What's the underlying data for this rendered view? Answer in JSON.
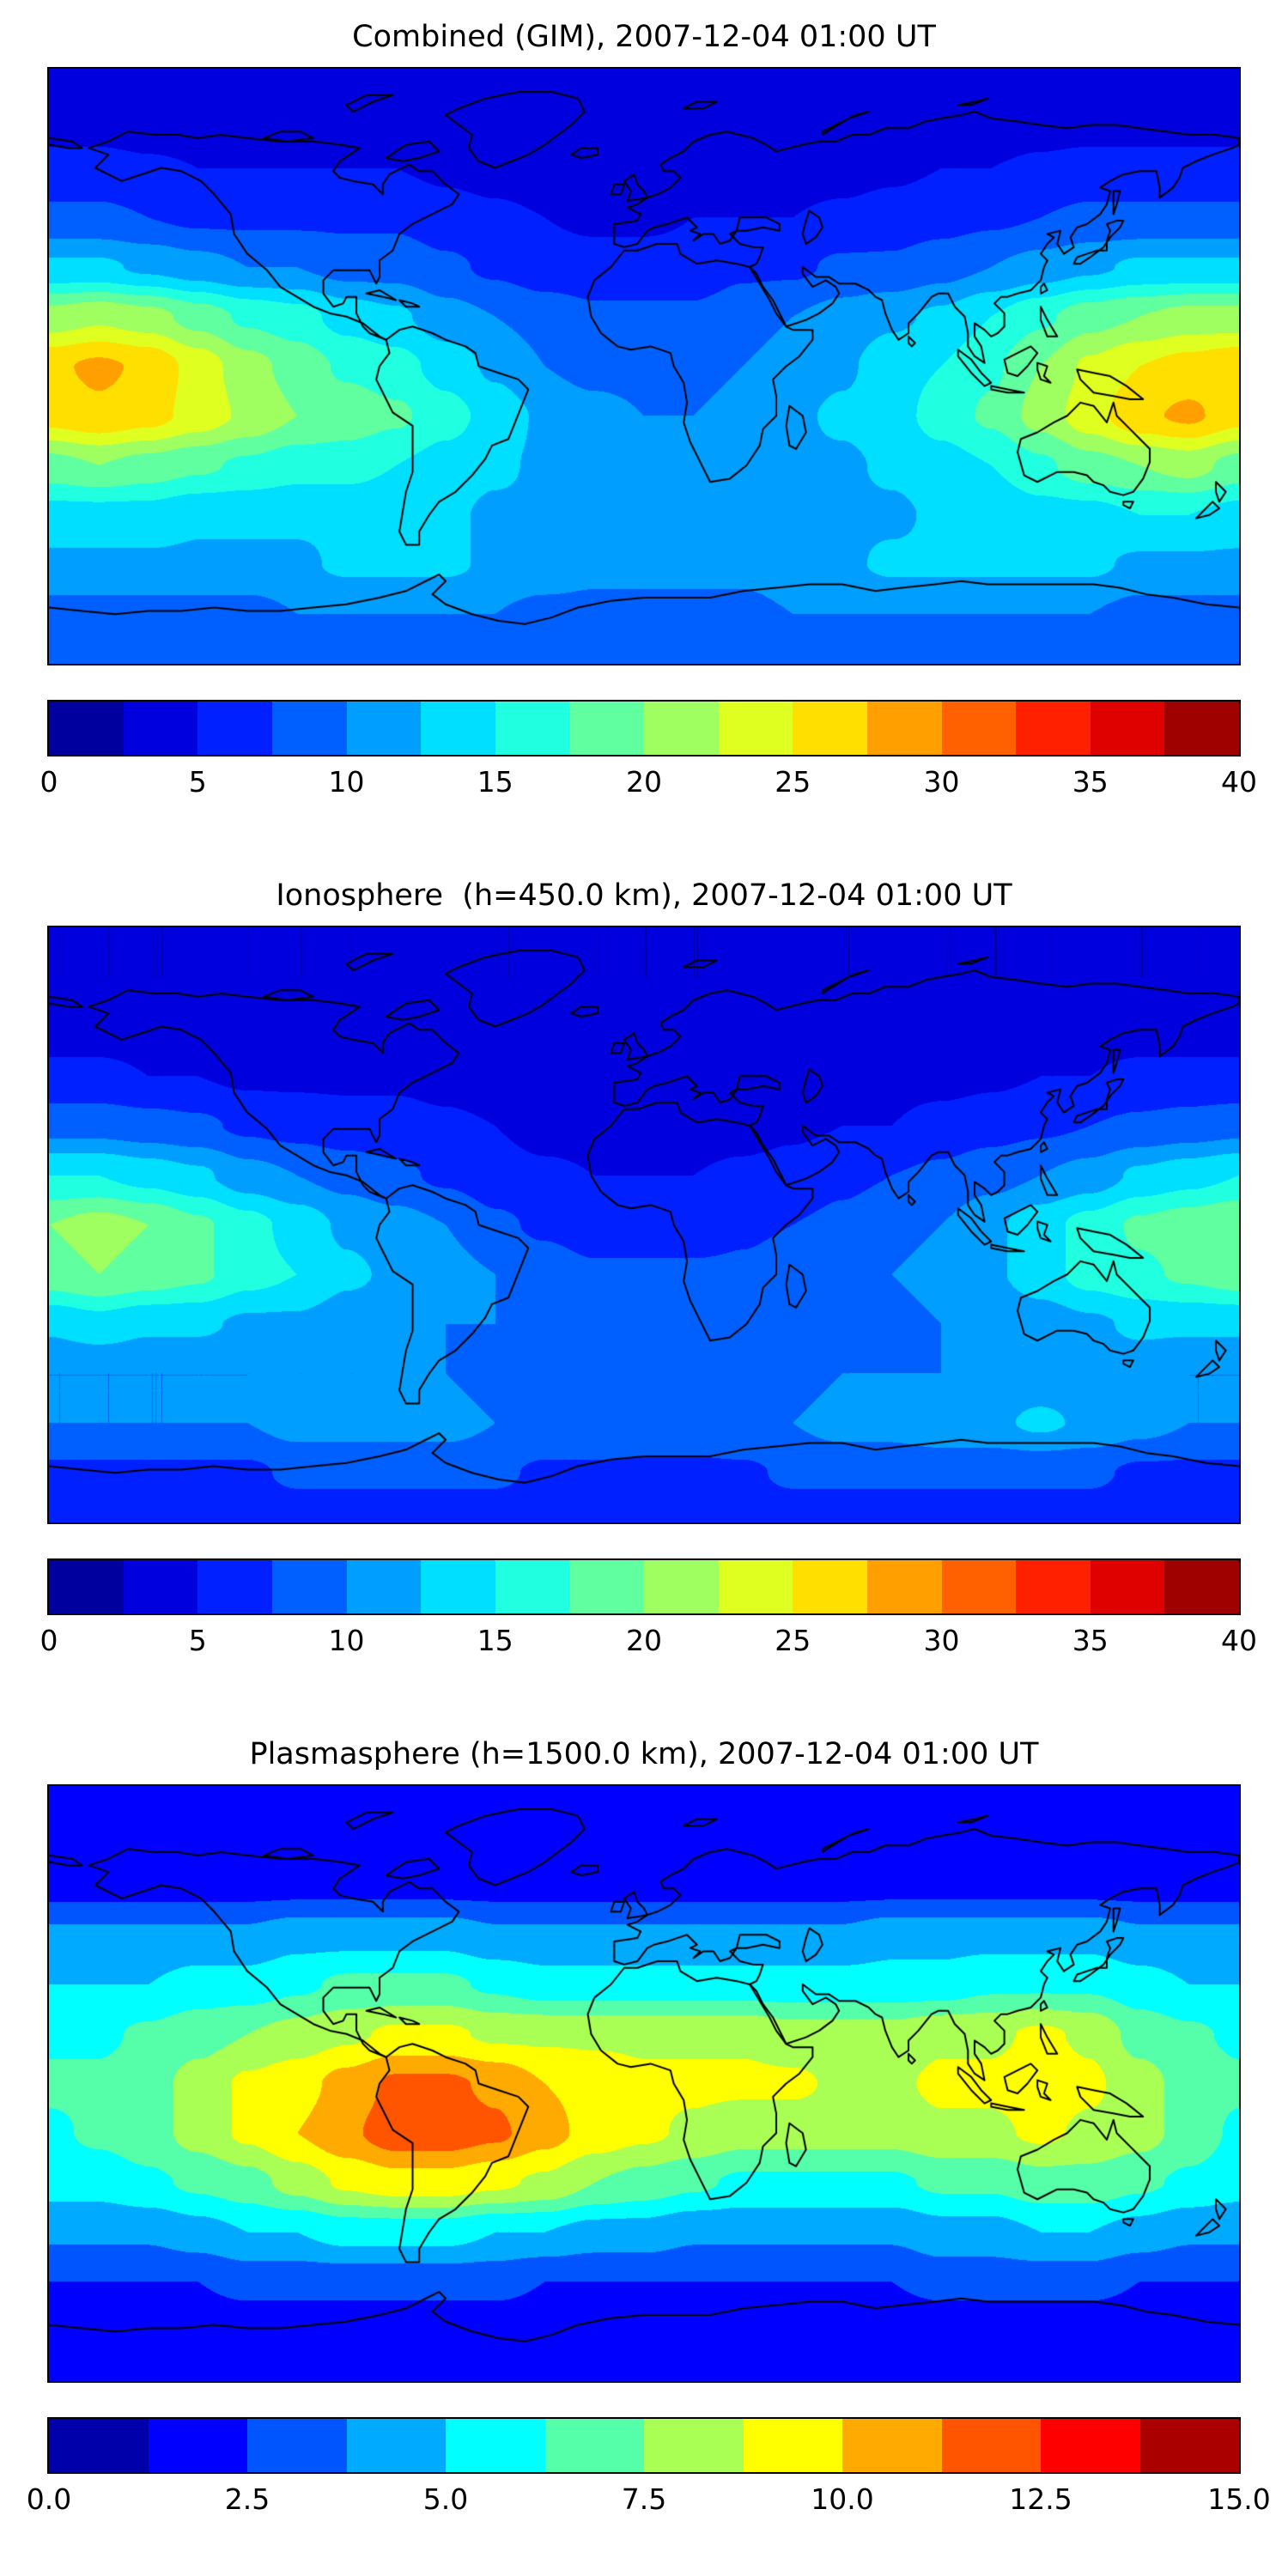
{
  "figure": {
    "background": "#ffffff",
    "coastline_color": "#000000"
  },
  "chart_data": [
    {
      "type": "heatmap",
      "title": "Combined (GIM), 2007-12-04 01:00 UT",
      "projection": "equirectangular",
      "lon_range": [
        -180,
        180
      ],
      "lat_range": [
        -90,
        90
      ],
      "grid_lon_step": 15,
      "grid_lat_step": 15,
      "vmin": 0,
      "vmax": 40,
      "n_levels": 16,
      "colormap": "jet",
      "colorbar_ticks": [
        "0",
        "5",
        "10",
        "15",
        "20",
        "25",
        "30",
        "35",
        "40"
      ],
      "values": [
        [
          3,
          3,
          3,
          3,
          3,
          3,
          3,
          3,
          3,
          3,
          3,
          3,
          3,
          3,
          3,
          3,
          3,
          3,
          3,
          3,
          3,
          3,
          3,
          3,
          3
        ],
        [
          3.5,
          3.5,
          3,
          3,
          3,
          3,
          3,
          3,
          3,
          3,
          2.5,
          2.5,
          2.5,
          2.5,
          3,
          3,
          3,
          3,
          3,
          3,
          3.5,
          3.5,
          3.5,
          3.5,
          3.5
        ],
        [
          6,
          6,
          5.5,
          5,
          5,
          5,
          5,
          5,
          4.5,
          4,
          3.5,
          3.5,
          3.5,
          3.5,
          4,
          4,
          4,
          4.5,
          5,
          5,
          5.5,
          6,
          6,
          6,
          6
        ],
        [
          8,
          8,
          7.5,
          7,
          7,
          7,
          7,
          7,
          6,
          5.5,
          5,
          4.5,
          4.5,
          5,
          5,
          5,
          5.5,
          6,
          6.5,
          7,
          7.5,
          8,
          8,
          8,
          8
        ],
        [
          13,
          13,
          12,
          11,
          10,
          10,
          9,
          9,
          8,
          7,
          6,
          6,
          6,
          6,
          7,
          7,
          8,
          8,
          9,
          10,
          11,
          12,
          13,
          13,
          13
        ],
        [
          21,
          22,
          21,
          19,
          17,
          16,
          14,
          13,
          11,
          10,
          9,
          8,
          8,
          8,
          9,
          10,
          11,
          12,
          13,
          15,
          17,
          19,
          20,
          21,
          21
        ],
        [
          27,
          28,
          27,
          24,
          21,
          19,
          17,
          16,
          14,
          12,
          10,
          9,
          9,
          9,
          10,
          11,
          12,
          14,
          15,
          17,
          20,
          23,
          25,
          26,
          27
        ],
        [
          26,
          27,
          26,
          24,
          22,
          20,
          19,
          18,
          16,
          14,
          12,
          11,
          10,
          10,
          11,
          12,
          13,
          14,
          16,
          18,
          21,
          24,
          27,
          28,
          26
        ],
        [
          19,
          20,
          19,
          18,
          17,
          16,
          16,
          15,
          14,
          13,
          12,
          11,
          11,
          11,
          11,
          12,
          12,
          13,
          14,
          15,
          17,
          19,
          20,
          21,
          19
        ],
        [
          14,
          14,
          14,
          13,
          13,
          13,
          13,
          13,
          13,
          12,
          12,
          12,
          11,
          11,
          11,
          12,
          12,
          12,
          13,
          13,
          14,
          14,
          15,
          15,
          14
        ],
        [
          12,
          12,
          12,
          12,
          12,
          12,
          13,
          13,
          13,
          12,
          12,
          11,
          11,
          11,
          11,
          12,
          12,
          13,
          13,
          13,
          13,
          13,
          12,
          12,
          12
        ],
        [
          9,
          9,
          9,
          9,
          9,
          10,
          10,
          10,
          10,
          10,
          9,
          9,
          9,
          9,
          9,
          10,
          10,
          10,
          10,
          10,
          10,
          10,
          9,
          9,
          9
        ],
        [
          8,
          8,
          8,
          8,
          8,
          8,
          8,
          8,
          8,
          8,
          8,
          8,
          8,
          8,
          8,
          8,
          8,
          8,
          8,
          8,
          8,
          8,
          8,
          8,
          8
        ]
      ]
    },
    {
      "type": "heatmap",
      "title": "Ionosphere  (h=450.0 km), 2007-12-04 01:00 UT",
      "projection": "equirectangular",
      "lon_range": [
        -180,
        180
      ],
      "lat_range": [
        -90,
        90
      ],
      "grid_lon_step": 15,
      "grid_lat_step": 15,
      "vmin": 0,
      "vmax": 40,
      "n_levels": 16,
      "colormap": "jet",
      "colorbar_ticks": [
        "0",
        "5",
        "10",
        "15",
        "20",
        "25",
        "30",
        "35",
        "40"
      ],
      "values": [
        [
          2.5,
          2.5,
          2.5,
          2.5,
          2.5,
          2.5,
          2.5,
          2.5,
          2.5,
          2.5,
          2.5,
          2.5,
          2.5,
          2.5,
          2.5,
          2.5,
          2.5,
          2.5,
          2.5,
          2.5,
          2.5,
          2.5,
          2.5,
          2.5,
          2.5
        ],
        [
          2.5,
          2.5,
          2.5,
          2.5,
          2.5,
          2.5,
          2.5,
          2.5,
          2.5,
          2.5,
          2.5,
          2.5,
          2.5,
          2.5,
          2.5,
          2.5,
          2.5,
          2.5,
          2.5,
          2.5,
          2.5,
          2.5,
          2.5,
          2.5,
          2.5
        ],
        [
          4,
          4,
          4,
          3.5,
          3.5,
          3.5,
          3.5,
          3.5,
          3,
          3,
          3,
          3,
          3,
          3,
          3,
          3,
          3,
          3,
          3.5,
          3.5,
          3.5,
          4,
          4,
          4,
          4
        ],
        [
          5.5,
          5.5,
          5,
          5,
          4.5,
          4.5,
          4.5,
          4.5,
          4,
          3.5,
          3,
          3,
          3,
          3,
          3,
          3.5,
          3.5,
          4,
          4,
          4.5,
          5,
          5,
          5.5,
          5.5,
          5.5
        ],
        [
          9,
          9,
          8.5,
          8,
          7,
          6.5,
          6,
          6,
          5.5,
          5,
          4,
          4,
          4,
          4,
          4,
          4.5,
          5,
          5,
          6,
          6.5,
          7,
          7.5,
          8,
          8.5,
          9
        ],
        [
          15,
          15,
          14,
          13,
          11,
          10,
          9,
          8,
          7,
          6,
          5.5,
          5,
          5,
          5,
          5.5,
          6,
          7,
          7.5,
          8,
          9,
          10,
          11,
          13,
          14,
          15
        ],
        [
          20,
          21,
          20,
          18,
          16,
          14,
          12,
          11,
          10,
          8,
          7,
          6,
          6,
          6,
          7,
          7.5,
          8,
          9,
          10,
          12,
          14,
          16,
          18,
          19,
          20
        ],
        [
          19,
          20,
          19,
          18,
          16,
          15,
          13,
          12,
          11,
          10,
          9,
          8,
          8,
          8,
          8,
          9,
          9,
          10,
          11,
          12,
          14,
          16,
          17,
          18,
          19
        ],
        [
          13,
          14,
          13,
          13,
          12,
          12,
          11,
          11,
          10,
          10,
          9,
          9,
          8,
          8,
          8,
          9,
          9,
          9,
          10,
          10,
          11,
          12,
          13,
          13,
          13
        ],
        [
          10,
          10,
          10,
          10,
          10,
          10,
          10,
          10,
          10,
          9,
          9,
          9,
          9,
          9,
          9,
          9,
          10,
          10,
          10,
          11,
          11,
          11,
          11,
          10,
          10
        ],
        [
          10,
          10,
          10,
          10,
          10,
          11,
          11,
          11,
          11,
          10,
          10,
          10,
          9,
          9,
          10,
          10,
          11,
          11,
          12,
          12,
          13,
          12,
          11,
          10,
          10
        ],
        [
          7,
          7,
          7,
          7,
          7,
          8,
          8,
          8,
          8,
          8,
          7,
          7,
          7,
          7,
          7,
          8,
          8,
          8,
          8,
          8,
          8,
          8,
          7,
          7,
          7
        ],
        [
          6,
          6,
          6,
          6,
          6,
          6,
          6,
          6,
          6,
          6,
          6,
          6,
          6,
          6,
          6,
          6,
          6,
          6,
          6,
          6,
          6,
          6,
          6,
          6,
          6
        ]
      ]
    },
    {
      "type": "heatmap",
      "title": "Plasmasphere (h=1500.0 km), 2007-12-04 01:00 UT",
      "projection": "equirectangular",
      "lon_range": [
        -180,
        180
      ],
      "lat_range": [
        -90,
        90
      ],
      "grid_lon_step": 15,
      "grid_lat_step": 15,
      "vmin": 0,
      "vmax": 15,
      "n_levels": 12,
      "colormap": "jet",
      "colorbar_ticks": [
        "0.0",
        "2.5",
        "5.0",
        "7.5",
        "10.0",
        "12.5",
        "15.0"
      ],
      "values": [
        [
          1.5,
          1.5,
          1.5,
          1.5,
          1.5,
          1.5,
          1.5,
          1.5,
          1.5,
          1.5,
          1.5,
          1.5,
          1.5,
          1.5,
          1.5,
          1.5,
          1.5,
          1.5,
          1.5,
          1.5,
          1.5,
          1.5,
          1.5,
          1.5,
          1.5
        ],
        [
          1.5,
          1.5,
          1.5,
          1.5,
          1.5,
          1.5,
          1.5,
          1.5,
          1.5,
          1.5,
          1.5,
          1.5,
          1.5,
          1.5,
          1.5,
          1.5,
          1.5,
          1.5,
          1.5,
          1.5,
          1.5,
          1.5,
          1.5,
          1.5,
          1.5
        ],
        [
          2,
          2,
          2,
          2,
          2,
          2,
          2,
          2,
          2,
          2,
          2,
          2,
          2,
          2,
          2,
          2,
          2,
          2,
          2,
          2,
          2,
          2,
          2,
          2,
          2
        ],
        [
          4,
          4,
          4,
          4,
          4,
          4.5,
          4.5,
          4.5,
          4.5,
          4,
          4,
          4,
          4,
          4,
          4,
          4,
          4,
          4.5,
          4.5,
          4.5,
          4.5,
          4.5,
          4,
          4,
          4
        ],
        [
          5,
          5,
          5,
          5.5,
          5.5,
          6,
          6.5,
          6.5,
          6.5,
          6,
          5.5,
          5.5,
          5.5,
          5.5,
          5.5,
          5.5,
          5.5,
          5.5,
          5.5,
          6,
          6,
          6,
          5.5,
          5,
          5
        ],
        [
          6,
          6,
          6.5,
          7,
          7.5,
          8,
          8.5,
          9,
          9,
          8.5,
          8.5,
          8.5,
          8.5,
          8.5,
          8.5,
          8,
          8,
          8,
          8.5,
          8.5,
          9,
          8.5,
          7,
          6.5,
          6
        ],
        [
          6.5,
          6.5,
          7,
          8,
          9,
          9.5,
          10.5,
          11.5,
          11.5,
          11,
          10,
          9.5,
          9,
          9,
          9,
          9,
          8.5,
          8.5,
          9,
          9,
          9.5,
          9,
          8,
          7,
          6.5
        ],
        [
          6,
          6.5,
          7,
          8,
          9,
          10,
          11,
          12,
          12,
          11.5,
          10.5,
          9.5,
          9,
          8.5,
          8,
          8,
          8,
          8,
          8.5,
          8.5,
          9,
          8.5,
          8,
          7,
          6
        ],
        [
          5.5,
          5.5,
          6,
          6.5,
          7,
          8,
          9,
          9.5,
          9.5,
          9,
          8.5,
          7.5,
          7,
          6.5,
          6,
          6,
          6,
          6,
          6.5,
          6.5,
          7,
          7,
          6.5,
          6,
          5.5
        ],
        [
          4,
          4,
          4,
          4.5,
          5,
          5,
          5.5,
          5.5,
          5.5,
          5,
          5,
          4.5,
          4.5,
          4,
          4,
          4,
          4,
          4,
          4.5,
          4.5,
          5,
          5,
          4.5,
          4,
          4
        ],
        [
          2.5,
          2.5,
          2.5,
          2.5,
          3,
          3,
          3,
          3,
          3,
          3,
          2.5,
          2.5,
          2.5,
          2.5,
          2.5,
          2.5,
          2.5,
          2.5,
          3,
          3,
          3,
          3,
          2.5,
          2.5,
          2.5
        ],
        [
          1.5,
          1.5,
          1.5,
          1.5,
          1.5,
          1.5,
          1.5,
          1.5,
          1.5,
          1.5,
          1.5,
          1.5,
          1.5,
          1.5,
          1.5,
          1.5,
          1.5,
          1.5,
          1.5,
          1.5,
          1.5,
          1.5,
          1.5,
          1.5,
          1.5
        ],
        [
          1.5,
          1.5,
          1.5,
          1.5,
          1.5,
          1.5,
          1.5,
          1.5,
          1.5,
          1.5,
          1.5,
          1.5,
          1.5,
          1.5,
          1.5,
          1.5,
          1.5,
          1.5,
          1.5,
          1.5,
          1.5,
          1.5,
          1.5,
          1.5,
          1.5
        ]
      ]
    }
  ]
}
